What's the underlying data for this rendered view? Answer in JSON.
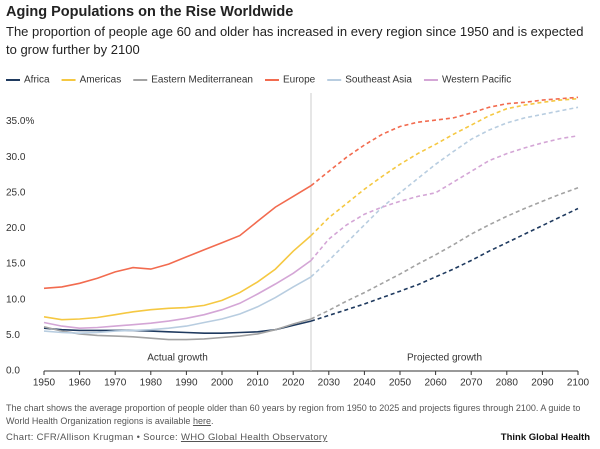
{
  "chart_data": {
    "type": "line",
    "title": "Aging Populations on the Rise Worldwide",
    "subtitle": "The proportion of people age 60 and older has increased in every region since 1950 and is expected to grow further by 2100",
    "annotations": [
      "Actual growth",
      "Projected growth"
    ],
    "projection_from": 2025,
    "x": [
      1950,
      1955,
      1960,
      1965,
      1970,
      1975,
      1980,
      1985,
      1990,
      1995,
      2000,
      2005,
      2010,
      2015,
      2020,
      2025,
      2030,
      2035,
      2040,
      2045,
      2050,
      2055,
      2060,
      2065,
      2070,
      2075,
      2080,
      2085,
      2090,
      2095,
      2100
    ],
    "series": [
      {
        "name": "Africa",
        "color": "#1f3a5f",
        "values": [
          6.0,
          5.8,
          5.7,
          5.7,
          5.7,
          5.7,
          5.6,
          5.5,
          5.4,
          5.3,
          5.3,
          5.4,
          5.5,
          5.8,
          6.4,
          7.0,
          7.8,
          8.6,
          9.4,
          10.3,
          11.2,
          12.1,
          13.2,
          14.3,
          15.5,
          16.8,
          18.0,
          19.2,
          20.4,
          21.6,
          22.8
        ]
      },
      {
        "name": "Americas",
        "color": "#f5c842",
        "values": [
          7.6,
          7.2,
          7.3,
          7.5,
          7.9,
          8.3,
          8.6,
          8.8,
          8.9,
          9.2,
          9.9,
          11.0,
          12.5,
          14.3,
          16.8,
          19.0,
          21.5,
          23.5,
          25.5,
          27.3,
          29.0,
          30.5,
          31.8,
          33.2,
          34.5,
          35.8,
          36.8,
          37.3,
          37.7,
          38.0,
          38.2
        ]
      },
      {
        "name": "Eastern Mediterranean",
        "color": "#a3a3a3",
        "values": [
          6.2,
          5.6,
          5.2,
          5.0,
          4.9,
          4.8,
          4.6,
          4.4,
          4.4,
          4.5,
          4.7,
          4.9,
          5.2,
          5.8,
          6.6,
          7.3,
          8.5,
          9.8,
          11.0,
          12.3,
          13.6,
          15.0,
          16.3,
          17.7,
          19.2,
          20.5,
          21.7,
          22.8,
          23.8,
          24.8,
          25.7
        ]
      },
      {
        "name": "Europe",
        "color": "#f26b4f",
        "values": [
          11.6,
          11.8,
          12.3,
          13.0,
          13.9,
          14.5,
          14.3,
          15.0,
          16.0,
          17.0,
          18.0,
          19.0,
          21.0,
          23.0,
          24.5,
          26.0,
          28.0,
          30.0,
          31.7,
          33.2,
          34.3,
          34.9,
          35.2,
          35.5,
          36.2,
          37.0,
          37.5,
          37.7,
          38.0,
          38.2,
          38.4
        ]
      },
      {
        "name": "Southeast Asia",
        "color": "#b8cde0",
        "values": [
          5.6,
          5.4,
          5.3,
          5.4,
          5.6,
          5.7,
          5.8,
          6.0,
          6.3,
          6.8,
          7.3,
          8.0,
          9.0,
          10.3,
          11.8,
          13.2,
          15.5,
          18.0,
          20.5,
          23.0,
          25.0,
          27.0,
          29.0,
          30.8,
          32.5,
          33.8,
          34.8,
          35.5,
          36.0,
          36.5,
          37.0
        ]
      },
      {
        "name": "Western Pacific",
        "color": "#d4a6d6",
        "values": [
          6.8,
          6.3,
          6.0,
          6.1,
          6.3,
          6.5,
          6.7,
          7.0,
          7.4,
          7.9,
          8.6,
          9.5,
          10.8,
          12.2,
          13.7,
          15.5,
          18.5,
          20.5,
          22.0,
          23.0,
          23.8,
          24.5,
          25.0,
          26.5,
          28.0,
          29.5,
          30.5,
          31.3,
          32.0,
          32.6,
          33.0
        ]
      }
    ],
    "xlim": [
      1950,
      2100
    ],
    "xticks": [
      1950,
      1960,
      1970,
      1980,
      1990,
      2000,
      2010,
      2020,
      2030,
      2040,
      2050,
      2060,
      2070,
      2080,
      2090,
      2100
    ],
    "ylim": [
      0,
      39
    ],
    "yticks": [
      {
        "value": 0,
        "label": "0.0"
      },
      {
        "value": 5,
        "label": "5.0"
      },
      {
        "value": 10,
        "label": "10.0"
      },
      {
        "value": 15,
        "label": "15.0"
      },
      {
        "value": 20,
        "label": "20.0"
      },
      {
        "value": 25,
        "label": "25.0"
      },
      {
        "value": 30,
        "label": "30.0"
      },
      {
        "value": 35,
        "label": "35.0%"
      }
    ],
    "grid": false,
    "note": {
      "text": "The chart shows the average proportion of people older than 60 years by region from 1950 to 2025 and projects figures through 2100. A guide to World Health Organization regions is available ",
      "link": "here",
      "end": "."
    },
    "credit": {
      "text": "Chart: CFR/Allison Krugman • Source: ",
      "link": "WHO Global Health Observatory"
    },
    "brand": "Think Global Health"
  }
}
